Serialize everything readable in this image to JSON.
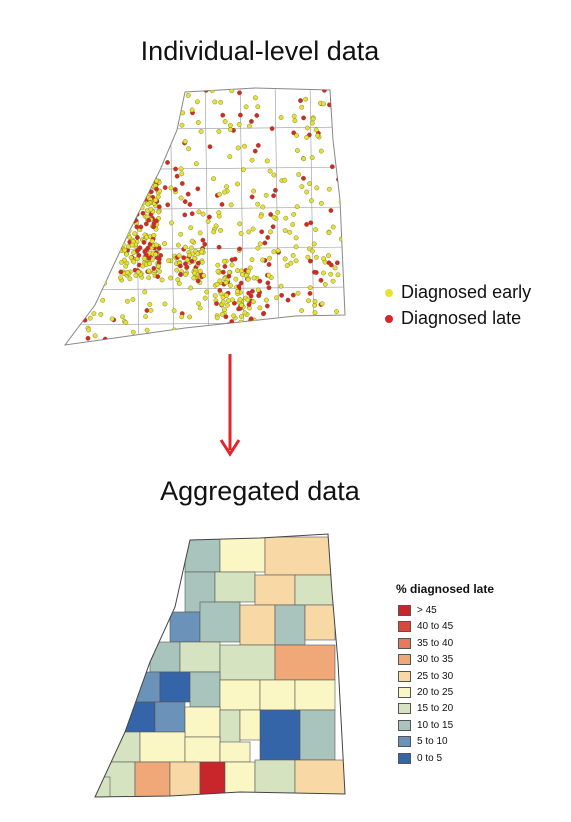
{
  "titles": {
    "top": "Individual-level data",
    "bottom": "Aggregated data"
  },
  "point_legend": [
    {
      "label": "Diagnosed early",
      "color": "#e6e233"
    },
    {
      "label": "Diagnosed late",
      "color": "#d9252a"
    }
  ],
  "arrow_color": "#e0262a",
  "choropleth_legend": {
    "title": "% diagnosed late",
    "classes": [
      {
        "label": "> 45",
        "color": "#c8262a"
      },
      {
        "label": "40 to 45",
        "color": "#d9493b"
      },
      {
        "label": "35 to 40",
        "color": "#e67a5e"
      },
      {
        "label": "30 to 35",
        "color": "#f0a878"
      },
      {
        "label": "25 to 30",
        "color": "#f8d8a4"
      },
      {
        "label": "20 to 25",
        "color": "#fbf7c4"
      },
      {
        "label": "15 to 20",
        "color": "#d6e3c0"
      },
      {
        "label": "10 to 15",
        "color": "#a8c4bc"
      },
      {
        "label": "5 to 10",
        "color": "#6b92b8"
      },
      {
        "label": "0 to 5",
        "color": "#3465a8"
      }
    ]
  }
}
